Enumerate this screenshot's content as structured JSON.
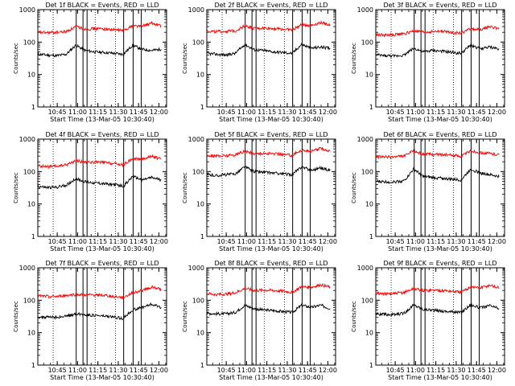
{
  "page": {
    "ylabel": "Counts/sec",
    "xlabel": "Start Time (13-Mar-05 10:30:40)",
    "colors": {
      "events": "#000000",
      "lld": "#ff0000",
      "axes": "#000000"
    }
  },
  "chart_data": [
    {
      "type": "line",
      "title": "Det 1f BLACK = Events, RED = LLD",
      "xlabel": "Start Time (13-Mar-05 10:30:40)",
      "ylabel": "Counts/sec",
      "yscale": "log",
      "ylim": [
        1,
        1000
      ],
      "yticks": [
        "1",
        "10",
        "100",
        "1000"
      ],
      "xticks": [
        "10:45",
        "11:00",
        "11:15",
        "11:30",
        "11:45",
        "12:00"
      ],
      "x_minutes_from_start": [
        0,
        7,
        14,
        21,
        28,
        35,
        42,
        49,
        56,
        63,
        70,
        77,
        84,
        91
      ],
      "series": [
        {
          "values": [
            42,
            40,
            38,
            42,
            80,
            55,
            50,
            48,
            45,
            42,
            80,
            60,
            55,
            60
          ]
        },
        {
          "values": [
            200,
            195,
            200,
            210,
            300,
            250,
            260,
            255,
            240,
            230,
            320,
            310,
            380,
            320
          ]
        }
      ],
      "solid_verticals": [
        "10:59",
        "11:04",
        "11:07",
        "11:34",
        "11:41",
        "11:47"
      ],
      "dotted_verticals": [
        "10:42",
        "11:13",
        "11:28"
      ]
    },
    {
      "type": "line",
      "title": "Det 2f BLACK = Events, RED = LLD",
      "xlabel": "Start Time (13-Mar-05 10:30:40)",
      "ylabel": "Counts/sec",
      "yscale": "log",
      "ylim": [
        1,
        1000
      ],
      "yticks": [
        "1",
        "10",
        "100",
        "1000"
      ],
      "xticks": [
        "10:45",
        "11:00",
        "11:15",
        "11:30",
        "11:45",
        "12:00"
      ],
      "x_minutes_from_start": [
        0,
        7,
        14,
        21,
        28,
        35,
        42,
        49,
        56,
        63,
        70,
        77,
        84,
        91
      ],
      "series": [
        {
          "values": [
            45,
            42,
            40,
            45,
            85,
            58,
            55,
            50,
            48,
            45,
            85,
            65,
            70,
            65
          ]
        },
        {
          "values": [
            220,
            210,
            215,
            220,
            320,
            260,
            270,
            265,
            250,
            240,
            340,
            330,
            400,
            340
          ]
        }
      ],
      "solid_verticals": [
        "10:59",
        "11:04",
        "11:07",
        "11:34",
        "11:41",
        "11:47"
      ],
      "dotted_verticals": [
        "10:42",
        "11:13",
        "11:28"
      ]
    },
    {
      "type": "line",
      "title": "Det 3f BLACK = Events, RED = LLD",
      "xlabel": "Start Time (13-Mar-05 10:30:40)",
      "ylabel": "Counts/sec",
      "yscale": "log",
      "ylim": [
        1,
        1000
      ],
      "yticks": [
        "1",
        "10",
        "100",
        "1000"
      ],
      "xticks": [
        "10:45",
        "11:00",
        "11:15",
        "11:30",
        "11:45",
        "12:00"
      ],
      "x_minutes_from_start": [
        0,
        7,
        14,
        21,
        28,
        35,
        42,
        49,
        56,
        63,
        70,
        77,
        84,
        91
      ],
      "series": [
        {
          "values": [
            40,
            38,
            37,
            40,
            65,
            50,
            55,
            52,
            48,
            45,
            80,
            62,
            70,
            62
          ]
        },
        {
          "values": [
            170,
            165,
            170,
            180,
            220,
            200,
            210,
            215,
            200,
            190,
            260,
            240,
            300,
            260
          ]
        }
      ],
      "solid_verticals": [
        "10:59",
        "11:04",
        "11:07",
        "11:34",
        "11:41",
        "11:47"
      ],
      "dotted_verticals": [
        "10:42",
        "11:13",
        "11:28"
      ]
    },
    {
      "type": "line",
      "title": "Det 4f BLACK = Events, RED = LLD",
      "xlabel": "Start Time (13-Mar-05 10:30:40)",
      "ylabel": "Counts/sec",
      "yscale": "log",
      "ylim": [
        1,
        1000
      ],
      "yticks": [
        "1",
        "10",
        "100",
        "1000"
      ],
      "xticks": [
        "10:45",
        "11:00",
        "11:15",
        "11:30",
        "11:45",
        "12:00"
      ],
      "x_minutes_from_start": [
        0,
        7,
        14,
        21,
        28,
        35,
        42,
        49,
        56,
        63,
        70,
        77,
        84,
        91
      ],
      "series": [
        {
          "values": [
            35,
            32,
            33,
            38,
            60,
            48,
            45,
            42,
            40,
            35,
            70,
            55,
            65,
            55
          ]
        },
        {
          "values": [
            150,
            140,
            145,
            160,
            220,
            190,
            195,
            190,
            175,
            160,
            250,
            240,
            300,
            240
          ]
        }
      ],
      "solid_verticals": [
        "10:59",
        "11:04",
        "11:07",
        "11:34",
        "11:41",
        "11:47"
      ],
      "dotted_verticals": [
        "10:42",
        "11:13",
        "11:28"
      ]
    },
    {
      "type": "line",
      "title": "Det 5f BLACK = Events, RED = LLD",
      "xlabel": "Start Time (13-Mar-05 10:30:40)",
      "ylabel": "Counts/sec",
      "yscale": "log",
      "ylim": [
        1,
        1000
      ],
      "yticks": [
        "1",
        "10",
        "100",
        "1000"
      ],
      "xticks": [
        "10:45",
        "11:00",
        "11:15",
        "11:30",
        "11:45",
        "12:00"
      ],
      "x_minutes_from_start": [
        0,
        7,
        14,
        21,
        28,
        35,
        42,
        49,
        56,
        63,
        70,
        77,
        84,
        91
      ],
      "series": [
        {
          "values": [
            80,
            75,
            80,
            85,
            140,
            100,
            95,
            90,
            85,
            80,
            140,
            110,
            130,
            110
          ]
        },
        {
          "values": [
            320,
            300,
            310,
            330,
            420,
            360,
            360,
            355,
            340,
            320,
            460,
            420,
            520,
            430
          ]
        }
      ],
      "solid_verticals": [
        "10:59",
        "11:04",
        "11:07",
        "11:34",
        "11:41",
        "11:47"
      ],
      "dotted_verticals": [
        "10:42",
        "11:13",
        "11:28"
      ]
    },
    {
      "type": "line",
      "title": "Det 6f BLACK = Events, RED = LLD",
      "xlabel": "Start Time (13-Mar-05 10:30:40)",
      "ylabel": "Counts/sec",
      "yscale": "log",
      "ylim": [
        1,
        1000
      ],
      "yticks": [
        "1",
        "10",
        "100",
        "1000"
      ],
      "xticks": [
        "10:45",
        "11:00",
        "11:15",
        "11:30",
        "11:45",
        "12:00"
      ],
      "x_minutes_from_start": [
        0,
        7,
        14,
        21,
        28,
        35,
        42,
        49,
        56,
        63,
        70,
        77,
        84,
        91
      ],
      "series": [
        {
          "values": [
            50,
            48,
            48,
            52,
            120,
            70,
            65,
            62,
            58,
            55,
            120,
            90,
            80,
            70
          ]
        },
        {
          "values": [
            290,
            280,
            285,
            300,
            430,
            340,
            340,
            335,
            320,
            300,
            430,
            380,
            360,
            330
          ]
        }
      ],
      "solid_verticals": [
        "10:59",
        "11:04",
        "11:07",
        "11:34",
        "11:41",
        "11:47"
      ],
      "dotted_verticals": [
        "10:42",
        "11:13",
        "11:28"
      ]
    },
    {
      "type": "line",
      "title": "Det 7f BLACK = Events, RED = LLD",
      "xlabel": "Start Time (13-Mar-05 10:30:40)",
      "ylabel": "Counts/sec",
      "yscale": "log",
      "ylim": [
        1,
        1000
      ],
      "yticks": [
        "1",
        "10",
        "100",
        "1000"
      ],
      "xticks": [
        "10:45",
        "11:00",
        "11:15",
        "11:30",
        "11:45",
        "12:00"
      ],
      "x_minutes_from_start": [
        0,
        7,
        14,
        21,
        28,
        35,
        42,
        49,
        56,
        63,
        70,
        77,
        84,
        91
      ],
      "series": [
        {
          "values": [
            30,
            30,
            30,
            32,
            38,
            36,
            34,
            32,
            30,
            28,
            50,
            60,
            75,
            60
          ]
        },
        {
          "values": [
            135,
            130,
            130,
            140,
            150,
            145,
            145,
            140,
            130,
            120,
            170,
            200,
            260,
            220
          ]
        }
      ],
      "solid_verticals": [
        "10:59",
        "11:04",
        "11:07",
        "11:34",
        "11:41",
        "11:47"
      ],
      "dotted_verticals": [
        "10:42",
        "11:13",
        "11:28"
      ]
    },
    {
      "type": "line",
      "title": "Det 8f BLACK = Events, RED = LLD",
      "xlabel": "Start Time (13-Mar-05 10:30:40)",
      "ylabel": "Counts/sec",
      "yscale": "log",
      "ylim": [
        1,
        1000
      ],
      "yticks": [
        "1",
        "10",
        "100",
        "1000"
      ],
      "xticks": [
        "10:45",
        "11:00",
        "11:15",
        "11:30",
        "11:45",
        "12:00"
      ],
      "x_minutes_from_start": [
        0,
        7,
        14,
        21,
        28,
        35,
        42,
        49,
        56,
        63,
        70,
        77,
        84,
        91
      ],
      "series": [
        {
          "values": [
            40,
            38,
            38,
            42,
            70,
            55,
            50,
            48,
            45,
            42,
            70,
            60,
            70,
            55
          ]
        },
        {
          "values": [
            160,
            150,
            155,
            170,
            230,
            200,
            205,
            200,
            190,
            175,
            260,
            250,
            300,
            250
          ]
        }
      ],
      "solid_verticals": [
        "10:59",
        "11:04",
        "11:07",
        "11:34",
        "11:41",
        "11:47"
      ],
      "dotted_verticals": [
        "10:42",
        "11:13",
        "11:28"
      ]
    },
    {
      "type": "line",
      "title": "Det 9f BLACK = Events, RED = LLD",
      "xlabel": "Start Time (13-Mar-05 10:30:40)",
      "ylabel": "Counts/sec",
      "yscale": "log",
      "ylim": [
        1,
        1000
      ],
      "yticks": [
        "1",
        "10",
        "100",
        "1000"
      ],
      "xticks": [
        "10:45",
        "11:00",
        "11:15",
        "11:30",
        "11:45",
        "12:00"
      ],
      "x_minutes_from_start": [
        0,
        7,
        14,
        21,
        28,
        35,
        42,
        49,
        56,
        63,
        70,
        77,
        84,
        91
      ],
      "series": [
        {
          "values": [
            38,
            36,
            36,
            40,
            72,
            52,
            50,
            46,
            44,
            42,
            72,
            58,
            68,
            55
          ]
        },
        {
          "values": [
            165,
            155,
            160,
            175,
            230,
            200,
            205,
            200,
            190,
            175,
            260,
            240,
            290,
            240
          ]
        }
      ],
      "solid_verticals": [
        "10:59",
        "11:04",
        "11:07",
        "11:34",
        "11:41",
        "11:47"
      ],
      "dotted_verticals": [
        "10:42",
        "11:13",
        "11:28"
      ]
    }
  ]
}
